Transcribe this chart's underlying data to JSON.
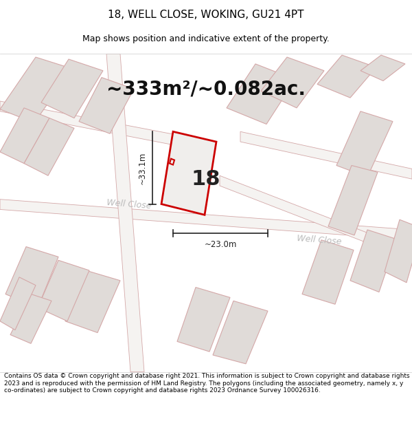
{
  "title": "18, WELL CLOSE, WOKING, GU21 4PT",
  "subtitle": "Map shows position and indicative extent of the property.",
  "area_text": "~333m²/~0.082ac.",
  "property_number": "18",
  "dim_vertical": "~33.1m",
  "dim_horizontal": "~23.0m",
  "road_label1": "Well Close",
  "road_label2": "Well Close",
  "footer": "Contains OS data © Crown copyright and database right 2021. This information is subject to Crown copyright and database rights 2023 and is reproduced with the permission of HM Land Registry. The polygons (including the associated geometry, namely x, y co-ordinates) are subject to Crown copyright and database rights 2023 Ordnance Survey 100026316.",
  "map_bg": "#eeecea",
  "building_fill": "#e0dbd8",
  "building_edge": "#d4a8a8",
  "road_fill": "#f5f3f1",
  "road_edge": "#d4a8a8",
  "property_fill": "#f0eeec",
  "property_stroke": "#cc0000",
  "dim_color": "#222222",
  "road_label_color": "#bbbbbb",
  "title_fontsize": 11,
  "subtitle_fontsize": 9,
  "area_fontsize": 20,
  "number_fontsize": 22,
  "footer_fontsize": 6.5
}
